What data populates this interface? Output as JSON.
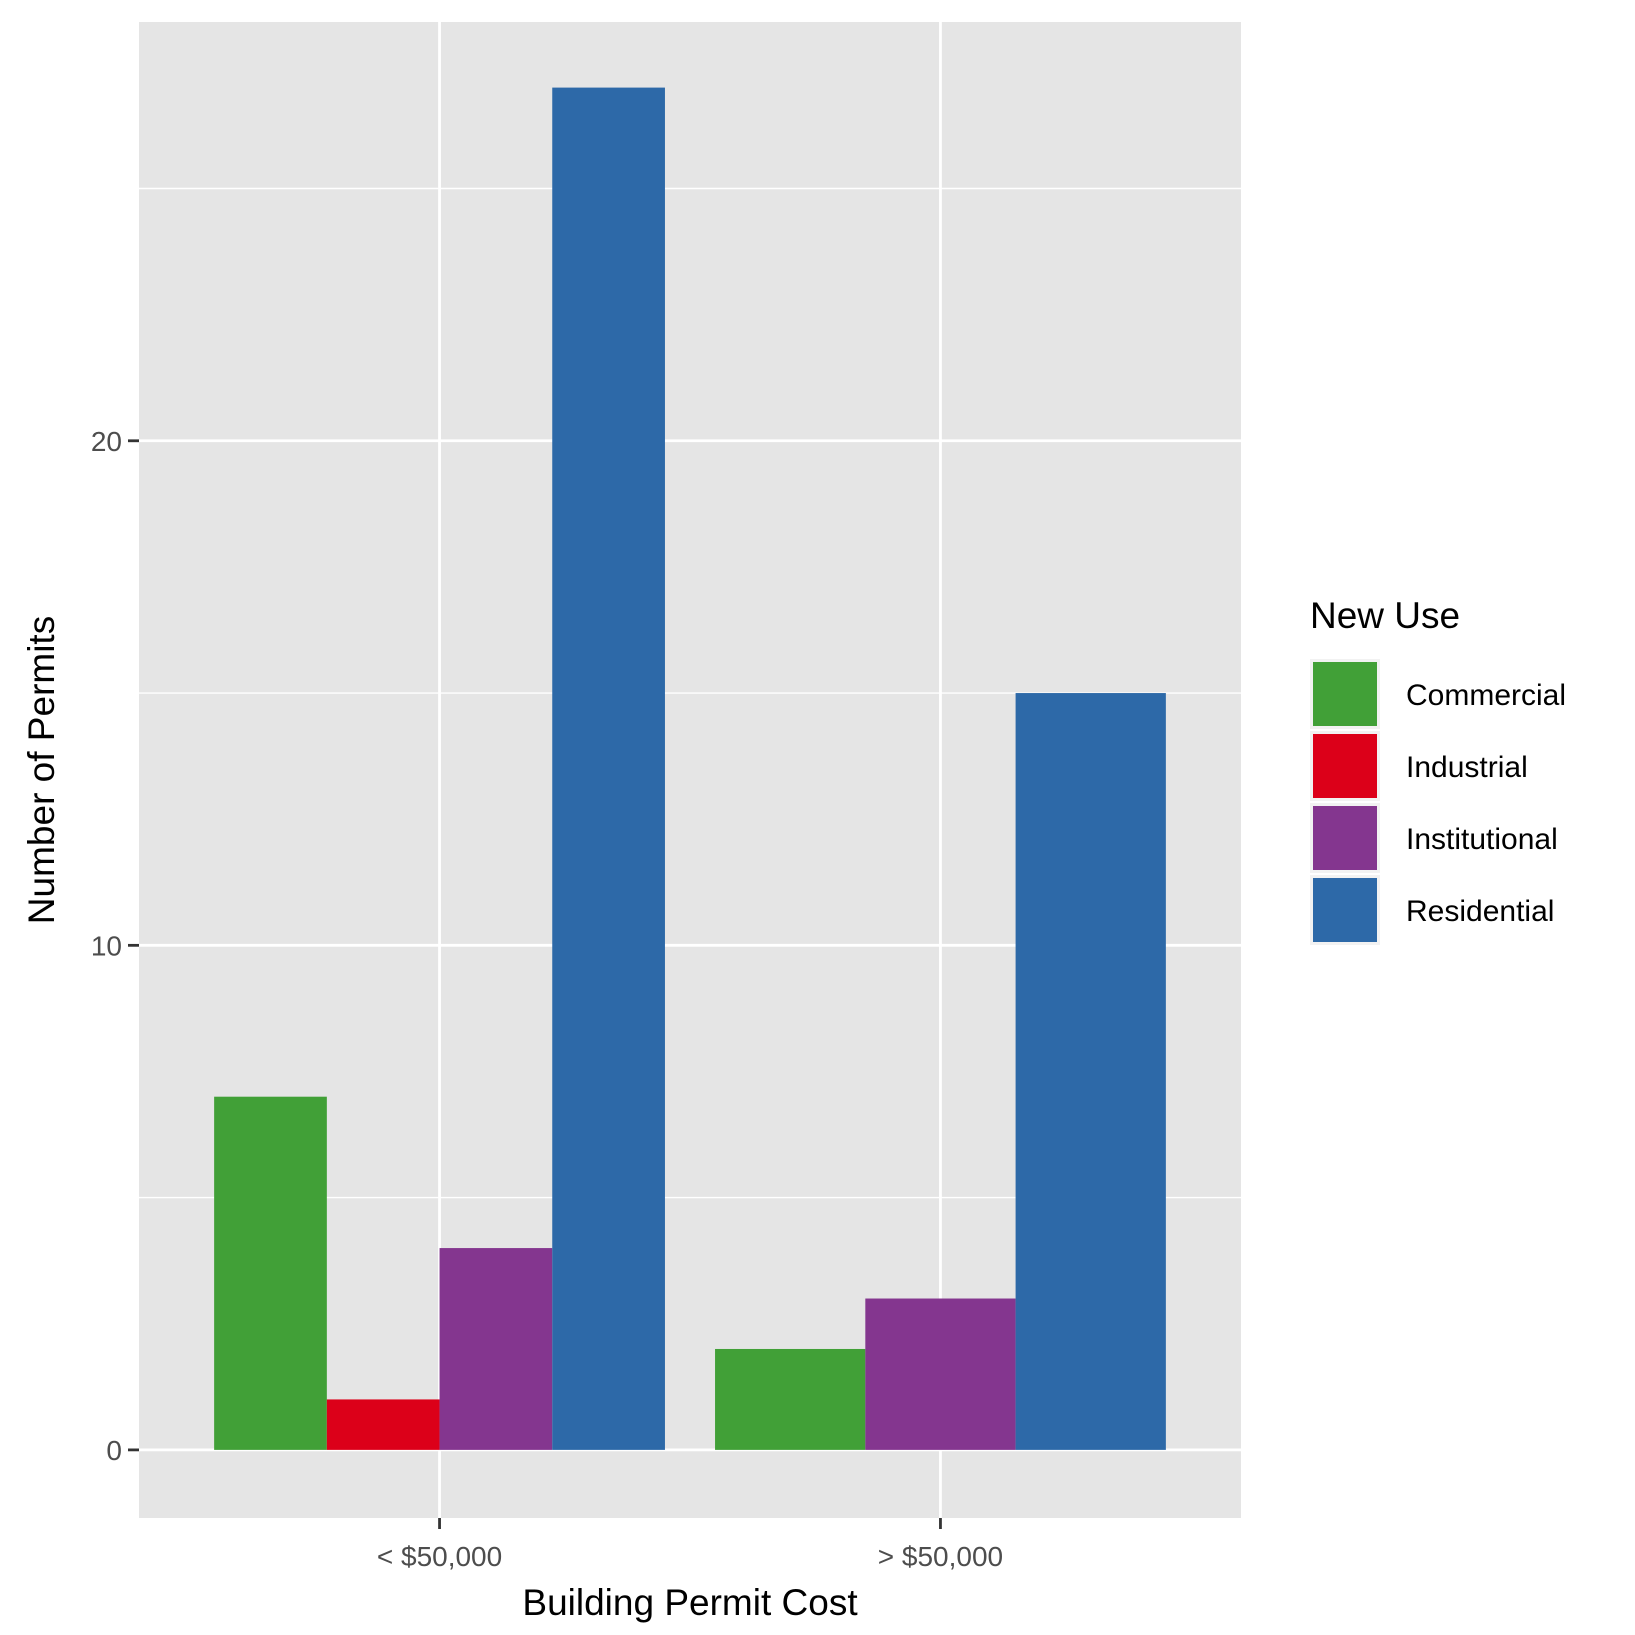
{
  "chart_data": {
    "type": "bar",
    "title": "",
    "xlabel": "Building Permit Cost",
    "ylabel": "Number of Permits",
    "categories": [
      "< $50,000",
      "> $50,000"
    ],
    "ylim": [
      -1.35,
      28.3
    ],
    "yticks": [
      0,
      10,
      20
    ],
    "ytick_labels": [
      "0",
      "10",
      "20"
    ],
    "grid": true,
    "legend": {
      "title": "New Use",
      "position": "right"
    },
    "series": [
      {
        "name": "Commercial",
        "color": "#41a037",
        "values": [
          7,
          2
        ]
      },
      {
        "name": "Industrial",
        "color": "#dc0019",
        "values": [
          1,
          null
        ]
      },
      {
        "name": "Institutional",
        "color": "#84368f",
        "values": [
          4,
          3
        ]
      },
      {
        "name": "Residential",
        "color": "#2d69a8",
        "values": [
          27,
          15
        ]
      }
    ]
  }
}
